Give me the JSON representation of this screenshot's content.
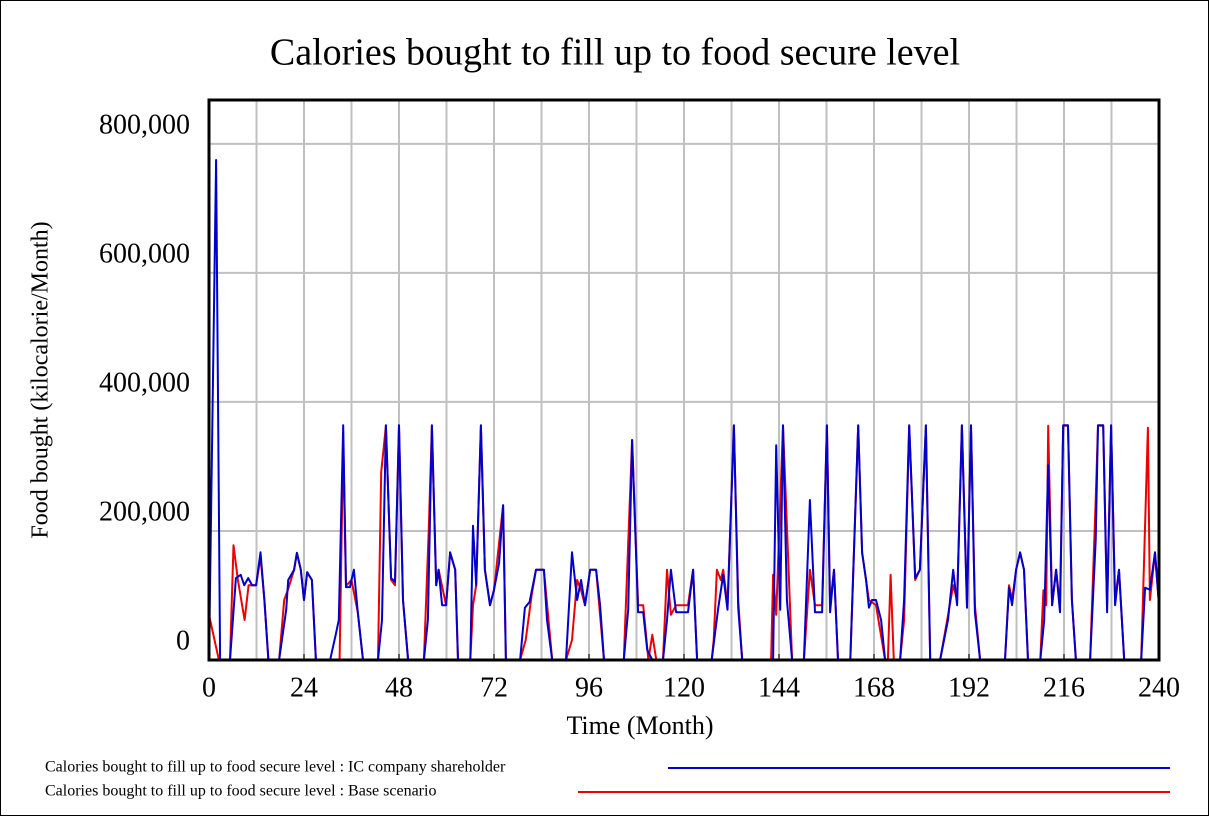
{
  "chart_data": {
    "type": "line",
    "title": "Calories bought to fill up to food secure level",
    "xlabel": "Time (Month)",
    "ylabel": "Food bought (kilocalorie/Month)",
    "xlim": [
      0,
      240
    ],
    "xticks": [
      0,
      24,
      48,
      72,
      96,
      120,
      144,
      168,
      192,
      216,
      240
    ],
    "xgrid": [
      12,
      24,
      36,
      48,
      60,
      72,
      84,
      96,
      108,
      120,
      132,
      144,
      156,
      168,
      180,
      192,
      204,
      216,
      228
    ],
    "ylim": [
      0,
      868000
    ],
    "yticks": [
      0,
      {
        "value": 200000,
        "label": "200,000"
      },
      {
        "value": 400000,
        "label": "400,000"
      },
      {
        "value": 600000,
        "label": "600,000"
      },
      {
        "value": 800000,
        "label": "800,000"
      }
    ],
    "grid": true,
    "series": [
      {
        "name": "Calories bought to fill up to food secure level : IC company shareholder",
        "color": "#0000cc",
        "x": [
          0,
          1.8,
          2.8,
          5.3,
          6.8,
          8,
          8.9,
          9.9,
          10.9,
          11.9,
          13,
          14,
          15,
          17.7,
          19.5,
          20,
          21.5,
          22.2,
          23.2,
          24,
          24.8,
          26,
          27,
          30.6,
          32,
          32.8,
          33.9,
          34.6,
          35.6,
          36.6,
          37.6,
          38.9,
          42.7,
          43.7,
          44.7,
          46,
          47,
          48,
          49,
          50.3,
          54.3,
          55.3,
          56.3,
          57.4,
          58,
          58.9,
          59.9,
          60.9,
          62.2,
          62.9,
          66,
          66.7,
          67.5,
          68.7,
          69.7,
          71,
          72,
          73.3,
          74.3,
          75,
          78.6,
          79.8,
          81,
          82.6,
          84.6,
          85.4,
          86.7,
          90.2,
          91.7,
          93,
          94,
          95,
          96.3,
          97.8,
          98.8,
          99.8,
          104.8,
          105.9,
          106.9,
          108.4,
          109.7,
          110.7,
          112,
          114.7,
          115.7,
          116.7,
          118,
          121,
          122.3,
          123.3,
          127,
          128.6,
          129.9,
          131,
          132.6,
          133.7,
          134.7,
          142.5,
          143.3,
          144.3,
          145,
          146,
          147.3,
          150.3,
          151.8,
          153.1,
          154.9,
          156.1,
          156.9,
          157.9,
          158.9,
          162,
          164,
          165,
          166,
          166.7,
          167.5,
          168.5,
          169.8,
          170.8,
          174.6,
          175.6,
          176.9,
          178.4,
          179.6,
          181.1,
          182.2,
          184.7,
          186.7,
          188,
          189,
          190.2,
          191.5,
          192.5,
          193.5,
          194.8,
          201.1,
          202.1,
          202.9,
          203.9,
          204.9,
          205.9,
          206.9,
          210,
          211,
          212,
          213,
          214,
          215,
          215.8,
          217,
          218,
          219,
          222.6,
          224,
          224.6,
          225.9,
          226.9,
          227.9,
          228.9,
          229.9,
          231.2,
          235.5,
          236.5,
          237.7,
          239,
          240
        ],
        "values": [
          0,
          775000,
          0,
          0,
          127000,
          132000,
          116000,
          127000,
          116000,
          116000,
          167000,
          93000,
          0,
          0,
          78000,
          124000,
          140000,
          166000,
          140000,
          93000,
          136000,
          124000,
          0,
          0,
          39000,
          62000,
          364000,
          113000,
          113000,
          140000,
          74000,
          0,
          0,
          62000,
          364000,
          127000,
          121000,
          364000,
          93000,
          0,
          0,
          62000,
          364000,
          116000,
          140000,
          85000,
          85000,
          167000,
          140000,
          0,
          0,
          208000,
          116000,
          364000,
          140000,
          85000,
          109000,
          150000,
          240000,
          0,
          0,
          81000,
          90000,
          140000,
          140000,
          62000,
          0,
          0,
          167000,
          93000,
          124000,
          85000,
          140000,
          140000,
          85000,
          0,
          0,
          78000,
          341000,
          74000,
          74000,
          16000,
          0,
          0,
          62000,
          140000,
          74000,
          74000,
          140000,
          0,
          0,
          78000,
          132000,
          78000,
          364000,
          81000,
          0,
          0,
          333000,
          78000,
          364000,
          93000,
          0,
          0,
          248000,
          74000,
          74000,
          364000,
          74000,
          140000,
          0,
          0,
          364000,
          167000,
          124000,
          81000,
          93000,
          93000,
          62000,
          0,
          0,
          93000,
          364000,
          127000,
          140000,
          364000,
          0,
          0,
          62000,
          140000,
          85000,
          364000,
          81000,
          364000,
          74000,
          0,
          0,
          112000,
          85000,
          140000,
          167000,
          140000,
          0,
          0,
          62000,
          302000,
          85000,
          140000,
          74000,
          364000,
          364000,
          93000,
          0,
          0,
          186000,
          364000,
          364000,
          74000,
          364000,
          85000,
          140000,
          0,
          0,
          112000,
          109000,
          167000,
          85000
        ]
      },
      {
        "name": "Calories bought to fill up to food secure level : Base scenario",
        "color": "#ee0000",
        "x": [
          0,
          2.5,
          5.3,
          6.2,
          7.3,
          9,
          10,
          11.9,
          13,
          14,
          15,
          17.7,
          19,
          20,
          21.5,
          22.2,
          23.2,
          24,
          24.8,
          26,
          27,
          33,
          33.9,
          34.6,
          36,
          37.6,
          38.9,
          42.7,
          43.5,
          44.7,
          46,
          47,
          48,
          49,
          50.3,
          54.3,
          55.5,
          56.3,
          57.4,
          58,
          59.9,
          60.9,
          62.2,
          62.9,
          66,
          66.7,
          67.5,
          68.7,
          69.7,
          71,
          72,
          74.3,
          75,
          78.6,
          80,
          81.5,
          82.6,
          84.6,
          86.7,
          90.2,
          91.7,
          93,
          94,
          95,
          96.3,
          97.8,
          99.8,
          104.8,
          106.9,
          108.4,
          109.7,
          111,
          112,
          113,
          114.7,
          115.7,
          116.7,
          118,
          121,
          122.3,
          123.3,
          127,
          127.5,
          128.3,
          129.3,
          129.9,
          131,
          132.6,
          133.7,
          134.7,
          142,
          142.5,
          143.3,
          145,
          147.3,
          150.3,
          151.8,
          153.1,
          154.9,
          156.1,
          156.9,
          157.9,
          158.9,
          162,
          164,
          165,
          166.7,
          168.5,
          170.8,
          171.5,
          172.2,
          173,
          174.6,
          175.6,
          176.9,
          178.4,
          179.6,
          181.1,
          182.2,
          184.7,
          186.5,
          188,
          189,
          190.2,
          191.5,
          192.5,
          193.5,
          194.8,
          201.1,
          202.1,
          202.9,
          203.9,
          204.9,
          205.9,
          206.9,
          210,
          210.8,
          211.5,
          212,
          213,
          214,
          215,
          215.8,
          217,
          218,
          219,
          222.6,
          224,
          224.6,
          225.9,
          226.9,
          227.9,
          228.9,
          229.9,
          231.2,
          235.5,
          237.2,
          237.7,
          239,
          240
        ],
        "values": [
          70000,
          0,
          0,
          178000,
          124000,
          62000,
          116000,
          116000,
          160000,
          93000,
          0,
          0,
          93000,
          110000,
          140000,
          166000,
          140000,
          93000,
          136000,
          124000,
          0,
          0,
          340000,
          115000,
          124000,
          74000,
          0,
          0,
          291000,
          363000,
          124000,
          116000,
          363000,
          93000,
          0,
          0,
          200000,
          363000,
          116000,
          140000,
          85000,
          166000,
          140000,
          0,
          0,
          85000,
          116000,
          363000,
          140000,
          85000,
          108000,
          240000,
          0,
          0,
          31000,
          100000,
          140000,
          140000,
          0,
          0,
          31000,
          124000,
          108000,
          85000,
          140000,
          140000,
          0,
          0,
          341000,
          85000,
          85000,
          0,
          39000,
          0,
          0,
          140000,
          70000,
          85000,
          85000,
          140000,
          0,
          0,
          31000,
          140000,
          124000,
          140000,
          85000,
          363000,
          93000,
          0,
          0,
          132000,
          70000,
          363000,
          0,
          0,
          140000,
          85000,
          85000,
          363000,
          85000,
          140000,
          0,
          0,
          363000,
          166000,
          93000,
          85000,
          0,
          0,
          132000,
          0,
          0,
          62000,
          363000,
          124000,
          140000,
          363000,
          0,
          0,
          62000,
          116000,
          93000,
          363000,
          85000,
          363000,
          85000,
          0,
          0,
          116000,
          93000,
          140000,
          166000,
          140000,
          0,
          0,
          108000,
          85000,
          363000,
          85000,
          140000,
          85000,
          363000,
          363000,
          93000,
          0,
          0,
          248000,
          363000,
          363000,
          85000,
          363000,
          93000,
          140000,
          0,
          0,
          360000,
          93000,
          166000,
          85000
        ]
      }
    ]
  }
}
